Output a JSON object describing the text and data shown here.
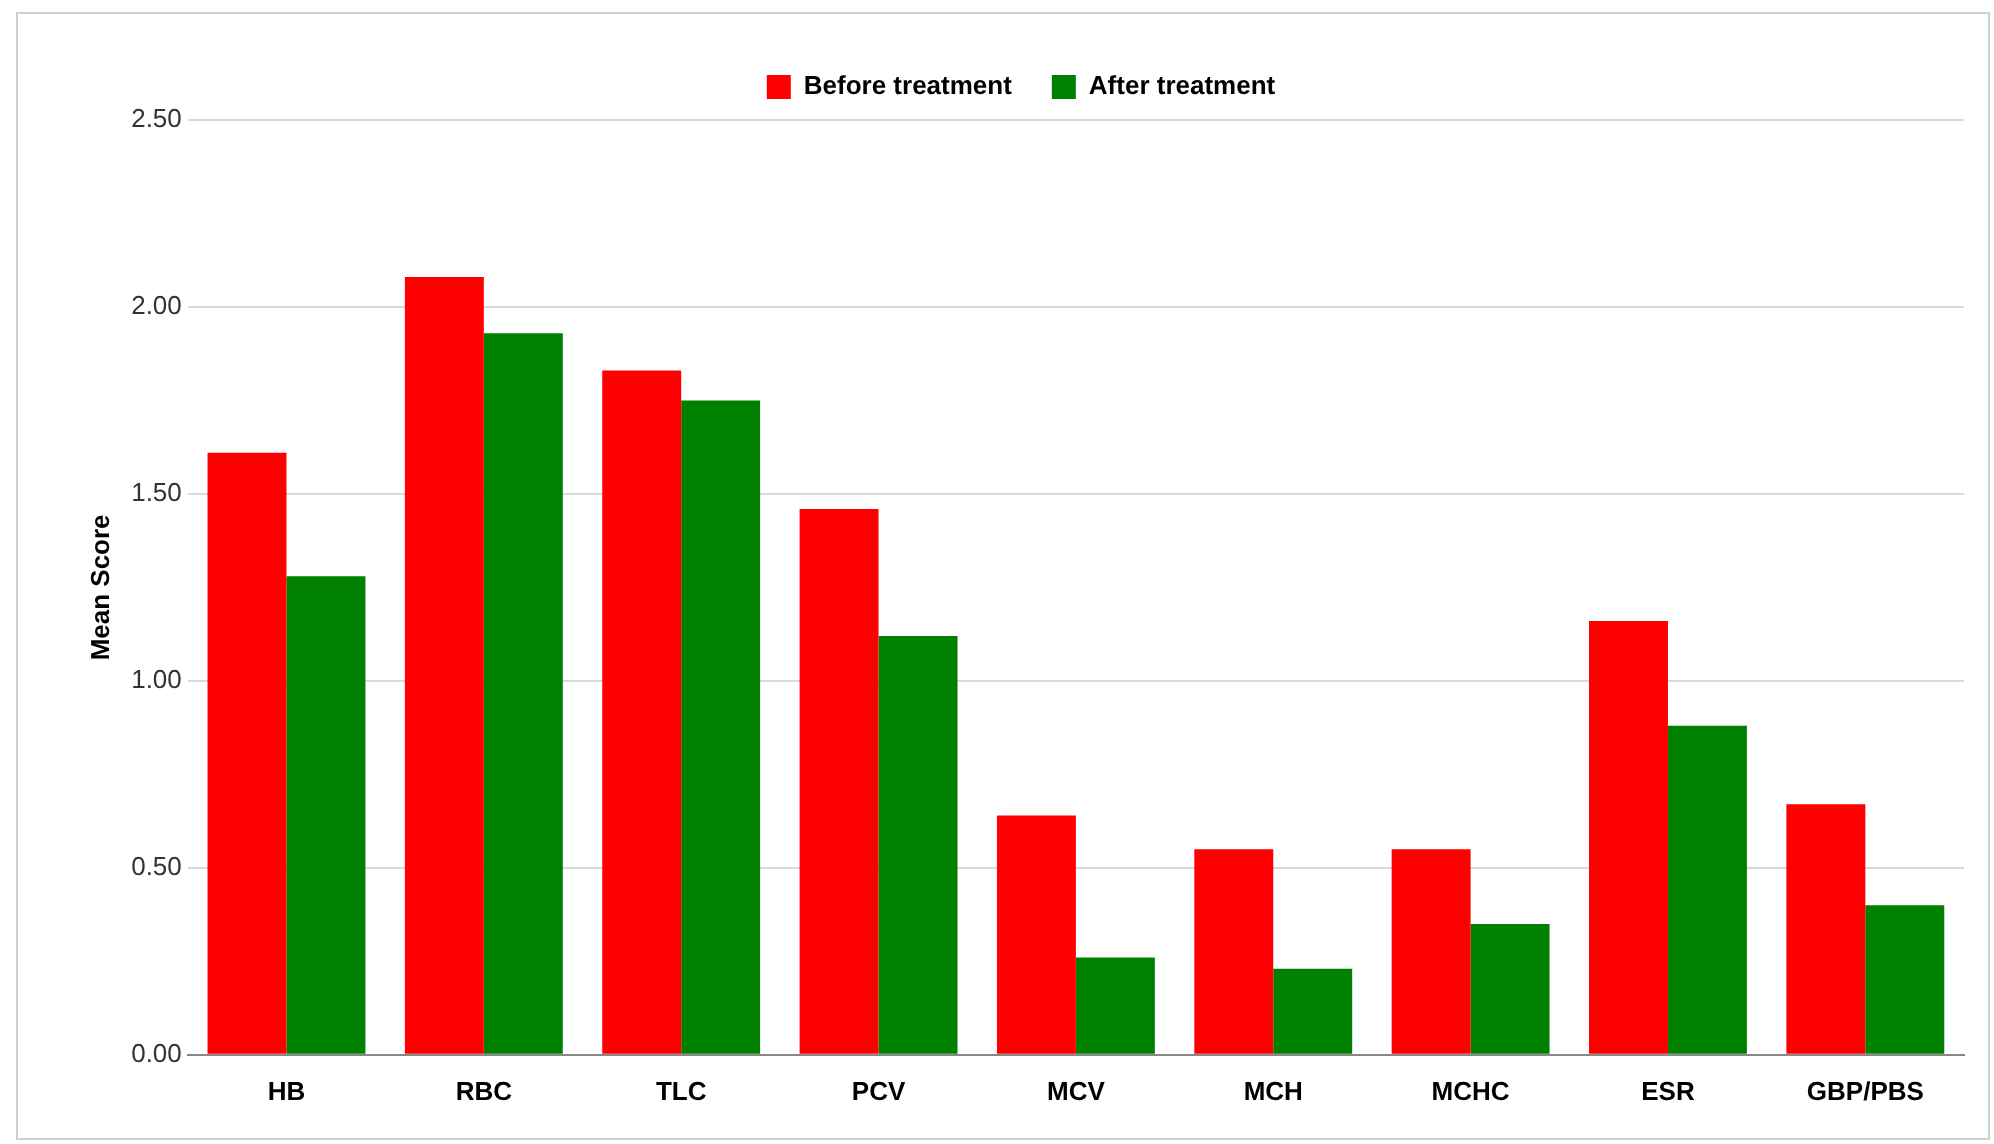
{
  "chart_data": {
    "type": "bar",
    "ylabel": "Mean Score",
    "categories": [
      "HB",
      "RBC",
      "TLC",
      "PCV",
      "MCV",
      "MCH",
      "MCHC",
      "ESR",
      "GBP/PBS"
    ],
    "series": [
      {
        "name": "Before treatment",
        "color": "#ff0000",
        "values": [
          1.61,
          2.08,
          1.83,
          1.46,
          0.64,
          0.55,
          0.55,
          1.16,
          0.67
        ]
      },
      {
        "name": "After treatment",
        "color": "#008000",
        "values": [
          1.28,
          1.93,
          1.75,
          1.12,
          0.26,
          0.23,
          0.35,
          0.88,
          0.4
        ]
      }
    ],
    "ylim": [
      0,
      2.5
    ],
    "yticks": [
      {
        "value": 0,
        "label": "0.00"
      },
      {
        "value": 0.5,
        "label": "0.50"
      },
      {
        "value": 1,
        "label": "1.00"
      },
      {
        "value": 1.5,
        "label": "1.50"
      },
      {
        "value": 2,
        "label": "2.00"
      },
      {
        "value": 2.5,
        "label": "2.50"
      }
    ],
    "grid": "y",
    "legend": "top"
  }
}
